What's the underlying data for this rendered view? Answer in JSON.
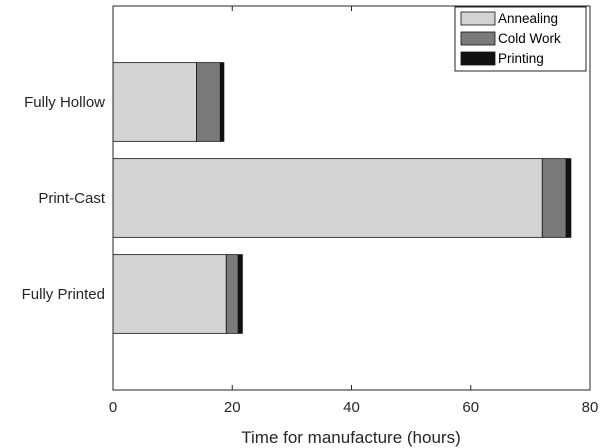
{
  "chart_data": {
    "type": "bar",
    "orientation": "horizontal",
    "stacked": true,
    "categories": [
      "Fully Hollow",
      "Print-Cast",
      "Fully Printed"
    ],
    "series": [
      {
        "name": "Annealing",
        "values": [
          14,
          72,
          19
        ],
        "color": "#d3d3d3"
      },
      {
        "name": "Cold Work",
        "values": [
          4,
          4,
          2
        ],
        "color": "#7a7a7a"
      },
      {
        "name": "Printing",
        "values": [
          0.6,
          0.8,
          0.7
        ],
        "color": "#111111"
      }
    ],
    "xlabel": "Time for manufacture (hours)",
    "ylabel": "",
    "xlim": [
      0,
      80
    ],
    "xticks": [
      "0",
      "20",
      "40",
      "60",
      "80"
    ],
    "grid": false,
    "legend_position": "top-right"
  }
}
